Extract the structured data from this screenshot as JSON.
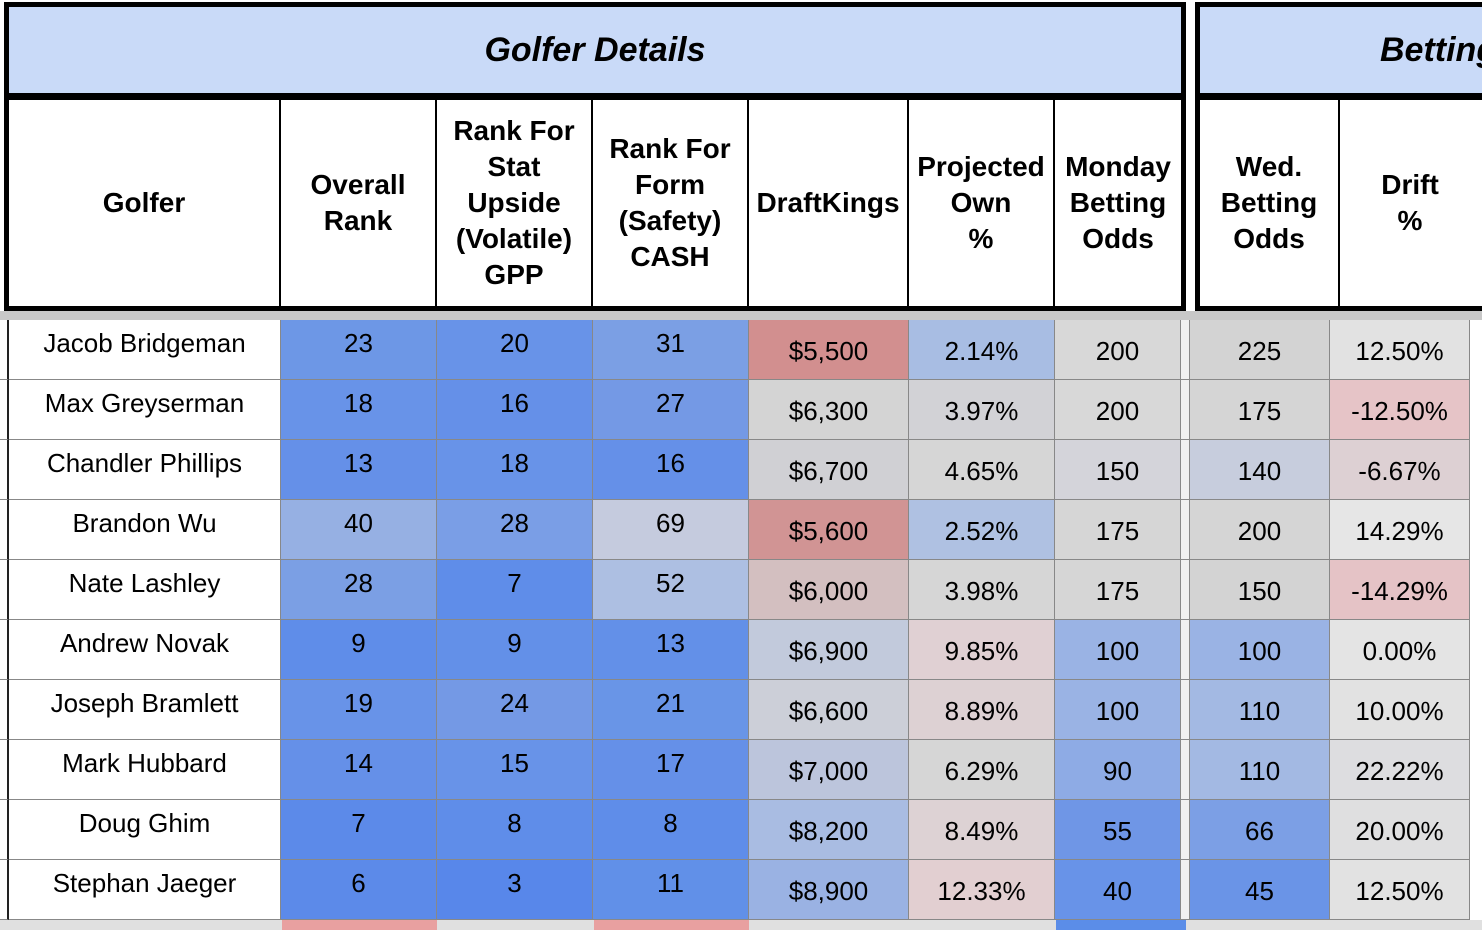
{
  "sections": {
    "golfer_details": "Golfer Details",
    "betting": "Betting"
  },
  "headers": {
    "golfer": [
      "Golfer",
      "Overall\nRank",
      "Rank For\nStat\nUpside\n(Volatile)\nGPP",
      "Rank For\nForm\n(Safety)\nCASH",
      "DraftKings",
      "Projected\nOwn\n%",
      "Monday\nBetting\nOdds"
    ],
    "betting": [
      "Wed.\nBetting\nOdds",
      "Drift\n%"
    ]
  },
  "rows": [
    {
      "golfer": "Jacob Bridgeman",
      "overall": "23",
      "gpp": "20",
      "cash": "31",
      "dk": "$5,500",
      "own": "2.14%",
      "mon": "200",
      "wed": "225",
      "drift": "12.50%"
    },
    {
      "golfer": "Max Greyserman",
      "overall": "18",
      "gpp": "16",
      "cash": "27",
      "dk": "$6,300",
      "own": "3.97%",
      "mon": "200",
      "wed": "175",
      "drift": "-12.50%"
    },
    {
      "golfer": "Chandler Phillips",
      "overall": "13",
      "gpp": "18",
      "cash": "16",
      "dk": "$6,700",
      "own": "4.65%",
      "mon": "150",
      "wed": "140",
      "drift": "-6.67%"
    },
    {
      "golfer": "Brandon Wu",
      "overall": "40",
      "gpp": "28",
      "cash": "69",
      "dk": "$5,600",
      "own": "2.52%",
      "mon": "175",
      "wed": "200",
      "drift": "14.29%"
    },
    {
      "golfer": "Nate Lashley",
      "overall": "28",
      "gpp": "7",
      "cash": "52",
      "dk": "$6,000",
      "own": "3.98%",
      "mon": "175",
      "wed": "150",
      "drift": "-14.29%"
    },
    {
      "golfer": "Andrew Novak",
      "overall": "9",
      "gpp": "9",
      "cash": "13",
      "dk": "$6,900",
      "own": "9.85%",
      "mon": "100",
      "wed": "100",
      "drift": "0.00%"
    },
    {
      "golfer": "Joseph Bramlett",
      "overall": "19",
      "gpp": "24",
      "cash": "21",
      "dk": "$6,600",
      "own": "8.89%",
      "mon": "100",
      "wed": "110",
      "drift": "10.00%"
    },
    {
      "golfer": "Mark Hubbard",
      "overall": "14",
      "gpp": "15",
      "cash": "17",
      "dk": "$7,000",
      "own": "6.29%",
      "mon": "90",
      "wed": "110",
      "drift": "22.22%"
    },
    {
      "golfer": "Doug Ghim",
      "overall": "7",
      "gpp": "8",
      "cash": "8",
      "dk": "$8,200",
      "own": "8.49%",
      "mon": "55",
      "wed": "66",
      "drift": "20.00%"
    },
    {
      "golfer": "Stephan Jaeger",
      "overall": "6",
      "gpp": "3",
      "cash": "11",
      "dk": "$8,900",
      "own": "12.33%",
      "mon": "40",
      "wed": "45",
      "drift": "12.50%"
    }
  ],
  "cell_colors": [
    {
      "overall": "#6d97e6",
      "gpp": "#6893e8",
      "cash": "#7b9fe4",
      "dk": "#d28f8f",
      "own": "#a8bde3",
      "mon": "#d8d8d8",
      "wed": "#d3d3d3",
      "drift": "#e2e2e2"
    },
    {
      "overall": "#6893e8",
      "gpp": "#6590e8",
      "cash": "#7499e5",
      "dk": "#d4d4d4",
      "own": "#d2d2d6",
      "mon": "#d8d8d8",
      "wed": "#d5d5d5",
      "drift": "#e6c4c7"
    },
    {
      "overall": "#6590e8",
      "gpp": "#6893e8",
      "cash": "#6590e8",
      "dk": "#d0d0d4",
      "own": "#d6d6d6",
      "mon": "#d4d4da",
      "wed": "#c7cddd",
      "drift": "#ddd0d3"
    },
    {
      "overall": "#96b0e3",
      "gpp": "#7a9ee6",
      "cash": "#c5cbde",
      "dk": "#d19494",
      "own": "#afc1e2",
      "mon": "#d6d6d6",
      "wed": "#d5d5d5",
      "drift": "#e6e6e6"
    },
    {
      "overall": "#7b9fe4",
      "gpp": "#5f8de9",
      "cash": "#adbfe2",
      "dk": "#d3bfc0",
      "own": "#d6d6d6",
      "mon": "#d6d6d6",
      "wed": "#d3d3d3",
      "drift": "#e5c3c6"
    },
    {
      "overall": "#5f8de9",
      "gpp": "#6390e8",
      "cash": "#6390e8",
      "dk": "#c2cadc",
      "own": "#e0d0d3",
      "mon": "#9ab3e4",
      "wed": "#9ab3e4",
      "drift": "#e4e4e4"
    },
    {
      "overall": "#6893e8",
      "gpp": "#7499e5",
      "cash": "#6995e7",
      "dk": "#cccfd8",
      "own": "#ddd1d3",
      "mon": "#9ab3e4",
      "wed": "#a3b9e3",
      "drift": "#e2e2e2"
    },
    {
      "overall": "#6590e8",
      "gpp": "#6893e8",
      "cash": "#6590e8",
      "dk": "#bcc5dc",
      "own": "#d6d6d6",
      "mon": "#8eabe5",
      "wed": "#a3b9e3",
      "drift": "#dddde0"
    },
    {
      "overall": "#5c8ae9",
      "gpp": "#5f8de9",
      "cash": "#5f8de9",
      "dk": "#a9bce2",
      "own": "#ddd2d4",
      "mon": "#6f96e6",
      "wed": "#7c9fe5",
      "drift": "#dfdfe0"
    },
    {
      "overall": "#5c8ae9",
      "gpp": "#5887ea",
      "cash": "#6190e8",
      "dk": "#9ab2e3",
      "own": "#e2cfd1",
      "mon": "#6893e8",
      "wed": "#6a94e7",
      "drift": "#e2e2e2"
    }
  ]
}
